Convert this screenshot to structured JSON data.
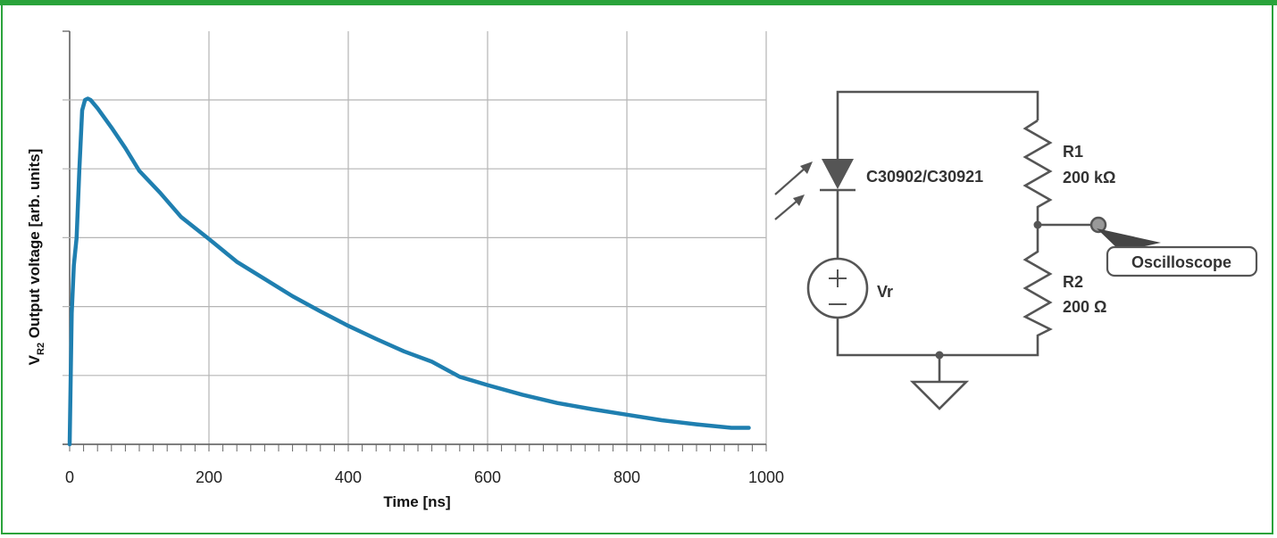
{
  "chart_data": {
    "type": "line",
    "xlabel": "Time [ns]",
    "ylabel_main": "V",
    "ylabel_sub": "R2",
    "ylabel_rest": " Output voltage [arb. units]",
    "xlim": [
      0,
      1000
    ],
    "ylim": [
      0,
      5
    ],
    "x_ticks": [
      0,
      200,
      400,
      600,
      800,
      1000
    ],
    "x_tick_labels": [
      "0",
      "200",
      "400",
      "600",
      "800",
      "1000"
    ],
    "y_gridlines": [
      0,
      1,
      2,
      3,
      4,
      5
    ],
    "grid": true,
    "series": [
      {
        "color": "#1f7fb0",
        "x": [
          0,
          3,
          6,
          10,
          14,
          18,
          22,
          26,
          30,
          40,
          60,
          80,
          100,
          130,
          160,
          200,
          240,
          280,
          320,
          360,
          400,
          440,
          480,
          520,
          560,
          600,
          650,
          700,
          750,
          800,
          850,
          900,
          950,
          975
        ],
        "y": [
          0,
          1.9,
          2.6,
          3.0,
          4.0,
          4.85,
          5.0,
          5.02,
          5.0,
          4.88,
          4.6,
          4.3,
          3.97,
          3.65,
          3.3,
          2.98,
          2.65,
          2.4,
          2.15,
          1.93,
          1.72,
          1.53,
          1.35,
          1.2,
          0.98,
          0.86,
          0.72,
          0.6,
          0.51,
          0.43,
          0.35,
          0.29,
          0.24,
          0.24
        ]
      }
    ]
  },
  "schematic": {
    "diode_label": "C30902/C30921",
    "r1_name": "R1",
    "r1_value": "200 kΩ",
    "r2_name": "R2",
    "r2_value": "200 Ω",
    "source_name": "Vr",
    "probe_label": "Oscilloscope"
  }
}
